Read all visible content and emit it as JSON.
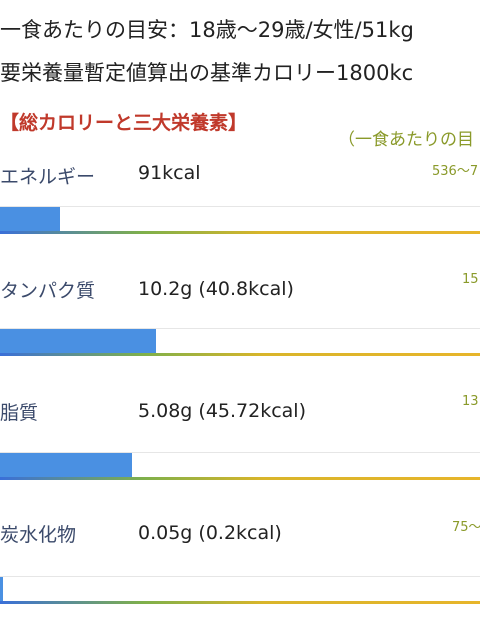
{
  "header": {
    "line1": "一食あたりの目安：18歳〜29歳/女性/51kg",
    "line2": "要栄養量暫定値算出の基準カロリー1800kc"
  },
  "section": {
    "title": "【総カロリーと三大栄養素】",
    "note": "（一食あたりの目"
  },
  "rows": [
    {
      "label": "エネルギー",
      "value": "91kcal",
      "range": "536〜7",
      "fill_pct": 12.5
    },
    {
      "label": "タンパク質",
      "value": "10.2g (40.8kcal)",
      "range": "15",
      "fill_pct": 32.5
    },
    {
      "label": "脂質",
      "value": "5.08g (45.72kcal)",
      "range": "13",
      "fill_pct": 27.5
    },
    {
      "label": "炭水化物",
      "value": "0.05g (0.2kcal)",
      "range": "75〜",
      "fill_pct": 0.6
    }
  ],
  "colors": {
    "fill": "#4a90e2",
    "title": "#c0392b",
    "note": "#8a9a2a"
  }
}
